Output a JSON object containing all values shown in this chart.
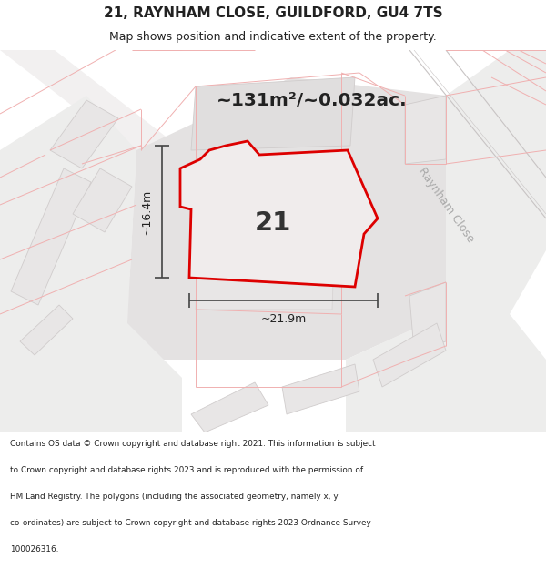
{
  "title_line1": "21, RAYNHAM CLOSE, GUILDFORD, GU4 7TS",
  "title_line2": "Map shows position and indicative extent of the property.",
  "area_text": "~131m²/~0.032ac.",
  "label_number": "21",
  "dim_width": "~21.9m",
  "dim_height": "~16.4m",
  "road_label": "Raynham Close",
  "footer_lines": [
    "Contains OS data © Crown copyright and database right 2021. This information is subject",
    "to Crown copyright and database rights 2023 and is reproduced with the permission of",
    "HM Land Registry. The polygons (including the associated geometry, namely x, y",
    "co-ordinates) are subject to Crown copyright and database rights 2023 Ordnance Survey",
    "100026316."
  ],
  "map_bg": "#f7f5f5",
  "building_fill": "#e8e6e6",
  "building_edge": "#d0cccc",
  "block_fill": "#ededec",
  "road_fill": "#ffffff",
  "highlight_fill": "#f0ecec",
  "highlight_edge": "#dd0000",
  "pink_line": "#f0b0b0",
  "gray_outline": "#c8c4c4",
  "road_gray": "#d8d4d4",
  "dim_color": "#444444",
  "text_dark": "#222222",
  "road_text_color": "#aaaaaa",
  "footer_bg": "#ffffff",
  "title_bg": "#ffffff"
}
